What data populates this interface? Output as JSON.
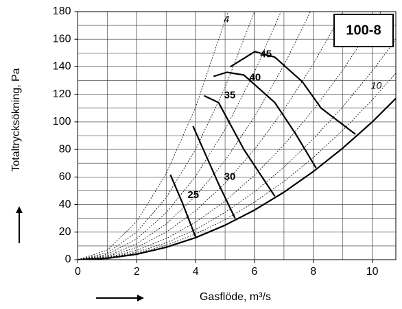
{
  "chart_data": {
    "type": "line",
    "title": "100-8",
    "x_label": "Gasflöde, m³/s",
    "y_label": "Totaltrycksökning, Pa",
    "xlim": [
      0,
      10.8
    ],
    "ylim": [
      0,
      180
    ],
    "xticks": [
      0,
      2,
      4,
      6,
      8,
      10
    ],
    "yticks": [
      0,
      20,
      40,
      60,
      80,
      100,
      120,
      140,
      160,
      180
    ],
    "grid": true,
    "series": [
      {
        "name": "25",
        "style": "fan",
        "color": "#000000",
        "x": [
          3.14,
          3.54,
          4.0
        ],
        "values": [
          61.7,
          41.8,
          16.4
        ]
      },
      {
        "name": "30",
        "style": "fan",
        "color": "#000000",
        "x": [
          3.91,
          4.78,
          5.34
        ],
        "values": [
          97,
          55,
          30
        ]
      },
      {
        "name": "35",
        "style": "fan",
        "color": "#000000",
        "x": [
          4.29,
          4.78,
          5.64,
          6.69
        ],
        "values": [
          119,
          114,
          80,
          46
        ]
      },
      {
        "name": "40",
        "style": "fan",
        "color": "#000000",
        "x": [
          4.61,
          5.06,
          5.64,
          6.69,
          7.39,
          8.09
        ],
        "values": [
          133,
          136,
          134,
          114,
          91.5,
          66.6
        ]
      },
      {
        "name": "45",
        "style": "fan",
        "color": "#000000",
        "x": [
          5.18,
          6.01,
          6.69,
          7.63,
          8.26,
          9.43
        ],
        "values": [
          140,
          151,
          147,
          129,
          110,
          91
        ]
      },
      {
        "style": "system",
        "color": "#000000",
        "x": [
          0,
          1,
          2,
          3,
          4,
          5,
          6,
          7,
          8,
          9,
          10,
          10.8
        ],
        "values": [
          0,
          1,
          4,
          9,
          16,
          25,
          36,
          49,
          64,
          81,
          100,
          117
        ]
      },
      {
        "name": "4",
        "style": "dotted",
        "color": "#000000",
        "x": [
          0,
          1,
          2,
          3,
          4,
          5.1
        ],
        "values": [
          0,
          6.9,
          27.7,
          62.3,
          110.7,
          180
        ]
      },
      {
        "style": "dotted",
        "color": "#000000",
        "x": [
          0,
          1,
          2,
          3,
          4,
          5,
          6
        ],
        "values": [
          0,
          5,
          20,
          45,
          80,
          125,
          180
        ]
      },
      {
        "style": "dotted",
        "color": "#000000",
        "x": [
          0,
          1,
          2,
          3,
          4,
          5,
          6,
          6.9
        ],
        "values": [
          0,
          3.8,
          15.1,
          34,
          60.5,
          94.5,
          136.1,
          180
        ]
      },
      {
        "style": "dotted",
        "color": "#000000",
        "x": [
          0,
          1,
          2,
          3,
          4,
          5,
          6,
          7,
          7.9
        ],
        "values": [
          0,
          2.9,
          11.5,
          25.9,
          46.1,
          72,
          103.7,
          141.1,
          180
        ]
      },
      {
        "style": "dotted",
        "color": "#000000",
        "x": [
          0,
          1,
          2,
          3,
          4,
          5,
          6,
          7,
          8,
          9
        ],
        "values": [
          0,
          2.2,
          8.9,
          20,
          35.5,
          55.5,
          79.9,
          108.8,
          142.1,
          180
        ]
      },
      {
        "style": "dotted",
        "color": "#000000",
        "x": [
          0,
          1,
          2,
          3,
          4,
          5,
          6,
          7,
          8,
          9,
          10,
          10.3
        ],
        "values": [
          0,
          1.7,
          6.8,
          15.3,
          27.2,
          42.5,
          61.2,
          83.3,
          108.8,
          137.7,
          170,
          180
        ]
      },
      {
        "style": "dotted",
        "color": "#000000",
        "x": [
          0,
          1,
          2,
          3,
          4,
          5,
          6,
          7,
          8,
          9,
          10,
          10.8
        ],
        "values": [
          0,
          1.4,
          5.5,
          12.3,
          21.9,
          34.3,
          49.3,
          67.1,
          87.7,
          111,
          137,
          159.8
        ]
      },
      {
        "name": "10",
        "style": "dotted",
        "color": "#000000",
        "x": [
          0,
          1,
          2,
          3,
          4,
          5,
          6,
          7,
          8,
          9,
          10,
          10.8
        ],
        "values": [
          0,
          1.2,
          4.6,
          10.4,
          18.6,
          29,
          41.8,
          56.8,
          74.2,
          94,
          116,
          135.3
        ]
      }
    ]
  }
}
